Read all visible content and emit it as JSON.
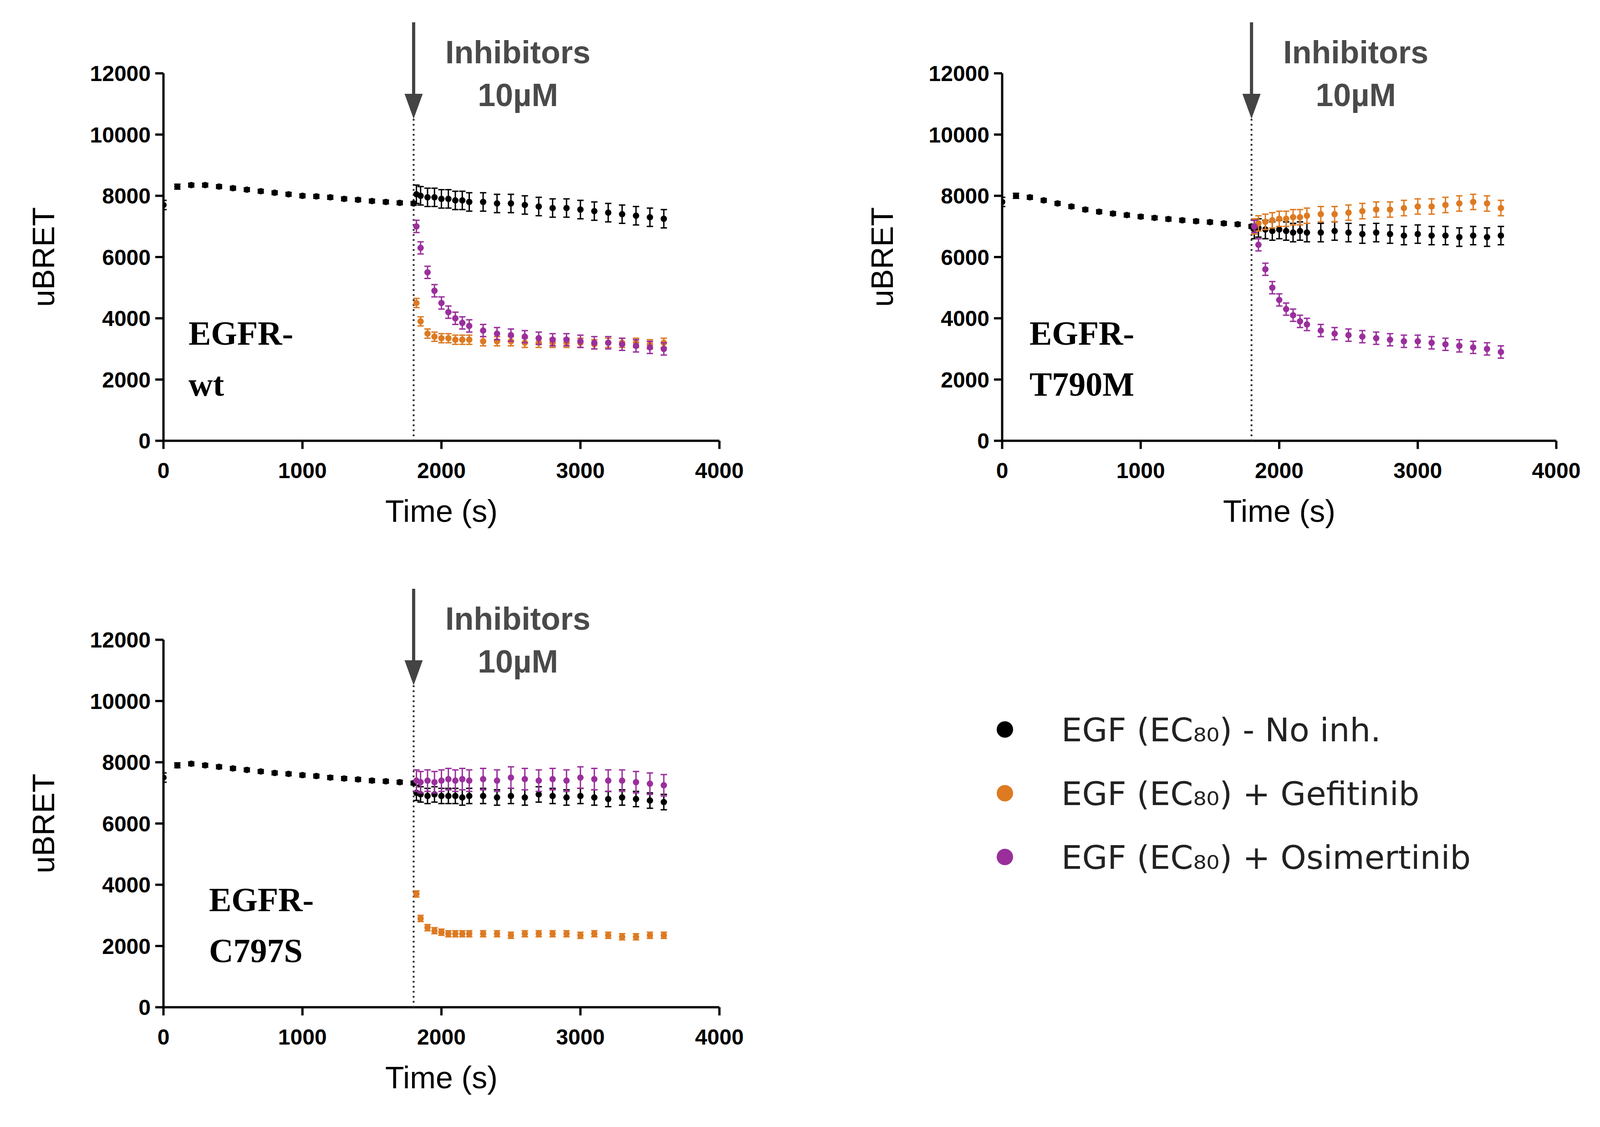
{
  "chart_data": [
    {
      "type": "scatter",
      "panel_label": [
        "EGFR-",
        "wt"
      ],
      "xlabel": "Time (s)",
      "ylabel": "uBRET",
      "annotation": {
        "text": [
          "Inhibitors",
          "10µM"
        ],
        "x": 1800
      },
      "xlim": [
        0,
        4000
      ],
      "xticks": [
        0,
        1000,
        2000,
        3000,
        4000
      ],
      "ylim": [
        0,
        12000
      ],
      "yticks": [
        0,
        2000,
        4000,
        6000,
        8000,
        10000,
        12000
      ],
      "x": [
        0,
        100,
        200,
        300,
        400,
        500,
        600,
        700,
        800,
        900,
        1000,
        1100,
        1200,
        1300,
        1400,
        1500,
        1600,
        1700,
        1800,
        1820,
        1850,
        1900,
        1950,
        2000,
        2050,
        2100,
        2150,
        2200,
        2300,
        2400,
        2500,
        2600,
        2700,
        2800,
        2900,
        3000,
        3100,
        3200,
        3300,
        3400,
        3500,
        3600
      ],
      "series": [
        {
          "name": "EGF (EC₈₀) - No inh.",
          "color": "#000000",
          "marker": "circle",
          "values": [
            7700,
            8300,
            8350,
            8350,
            8300,
            8250,
            8200,
            8150,
            8100,
            8050,
            8000,
            7980,
            7950,
            7900,
            7870,
            7830,
            7800,
            7770,
            7750,
            8050,
            8000,
            7950,
            7950,
            7900,
            7900,
            7850,
            7850,
            7800,
            7800,
            7750,
            7750,
            7700,
            7650,
            7600,
            7600,
            7550,
            7500,
            7450,
            7400,
            7350,
            7300,
            7250
          ],
          "errors": [
            150,
            80,
            60,
            60,
            60,
            60,
            60,
            60,
            60,
            60,
            60,
            60,
            60,
            60,
            60,
            60,
            60,
            60,
            60,
            300,
            300,
            300,
            300,
            300,
            300,
            300,
            300,
            300,
            300,
            300,
            300,
            300,
            300,
            300,
            300,
            300,
            300,
            300,
            300,
            300,
            300,
            300
          ]
        },
        {
          "name": "EGF (EC₈₀) + Gefitinib",
          "color": "#dd7a22",
          "marker": "circle",
          "values": [
            null,
            null,
            null,
            null,
            null,
            null,
            null,
            null,
            null,
            null,
            null,
            null,
            null,
            null,
            null,
            null,
            null,
            null,
            null,
            4500,
            3900,
            3500,
            3400,
            3350,
            3350,
            3300,
            3300,
            3300,
            3250,
            3250,
            3250,
            3200,
            3200,
            3200,
            3200,
            3200,
            3150,
            3200,
            3200,
            3200,
            3150,
            3200
          ],
          "errors": [
            null,
            null,
            null,
            null,
            null,
            null,
            null,
            null,
            null,
            null,
            null,
            null,
            null,
            null,
            null,
            null,
            null,
            null,
            null,
            150,
            150,
            150,
            150,
            150,
            150,
            150,
            150,
            150,
            150,
            150,
            150,
            150,
            150,
            150,
            150,
            150,
            150,
            150,
            150,
            150,
            150,
            150
          ]
        },
        {
          "name": "EGF (EC₈₀) + Osimertinib",
          "color": "#9a2f9c",
          "marker": "circle",
          "values": [
            null,
            null,
            null,
            null,
            null,
            null,
            null,
            null,
            null,
            null,
            null,
            null,
            null,
            null,
            null,
            null,
            null,
            null,
            null,
            7000,
            6300,
            5500,
            4900,
            4500,
            4200,
            4000,
            3850,
            3750,
            3600,
            3500,
            3450,
            3400,
            3350,
            3300,
            3300,
            3250,
            3200,
            3200,
            3150,
            3100,
            3050,
            3000
          ],
          "errors": [
            null,
            null,
            null,
            null,
            null,
            null,
            null,
            null,
            null,
            null,
            null,
            null,
            null,
            null,
            null,
            null,
            null,
            null,
            null,
            200,
            200,
            200,
            200,
            200,
            200,
            200,
            200,
            200,
            200,
            200,
            200,
            200,
            200,
            200,
            200,
            200,
            200,
            200,
            200,
            200,
            200,
            200
          ]
        }
      ]
    },
    {
      "type": "scatter",
      "panel_label": [
        "EGFR-",
        "T790M"
      ],
      "xlabel": "Time (s)",
      "ylabel": "uBRET",
      "annotation": {
        "text": [
          "Inhibitors",
          "10µM"
        ],
        "x": 1800
      },
      "xlim": [
        0,
        4000
      ],
      "xticks": [
        0,
        1000,
        2000,
        3000,
        4000
      ],
      "ylim": [
        0,
        12000
      ],
      "yticks": [
        0,
        2000,
        4000,
        6000,
        8000,
        10000,
        12000
      ],
      "x": [
        0,
        100,
        200,
        300,
        400,
        500,
        600,
        700,
        800,
        900,
        1000,
        1100,
        1200,
        1300,
        1400,
        1500,
        1600,
        1700,
        1800,
        1820,
        1850,
        1900,
        1950,
        2000,
        2050,
        2100,
        2150,
        2200,
        2300,
        2400,
        2500,
        2600,
        2700,
        2800,
        2900,
        3000,
        3100,
        3200,
        3300,
        3400,
        3500,
        3600
      ],
      "series": [
        {
          "name": "EGF (EC₈₀) - No inh.",
          "color": "#000000",
          "marker": "circle",
          "values": [
            7800,
            8000,
            7950,
            7850,
            7750,
            7650,
            7550,
            7480,
            7420,
            7370,
            7320,
            7280,
            7240,
            7200,
            7170,
            7140,
            7100,
            7070,
            7000,
            6900,
            6950,
            6900,
            6850,
            6900,
            6850,
            6800,
            6850,
            6800,
            6800,
            6850,
            6800,
            6750,
            6800,
            6750,
            6700,
            6750,
            6700,
            6700,
            6650,
            6700,
            6650,
            6700
          ],
          "errors": [
            150,
            80,
            60,
            60,
            60,
            60,
            60,
            60,
            60,
            60,
            60,
            60,
            60,
            60,
            60,
            60,
            60,
            60,
            60,
            300,
            300,
            300,
            300,
            300,
            300,
            300,
            300,
            300,
            300,
            300,
            300,
            300,
            300,
            300,
            300,
            300,
            300,
            300,
            300,
            300,
            300,
            300
          ]
        },
        {
          "name": "EGF (EC₈₀) + Gefitinib",
          "color": "#dd7a22",
          "marker": "circle",
          "values": [
            null,
            null,
            null,
            null,
            null,
            null,
            null,
            null,
            null,
            null,
            null,
            null,
            null,
            null,
            null,
            null,
            null,
            null,
            null,
            7000,
            7100,
            7150,
            7200,
            7250,
            7250,
            7300,
            7300,
            7350,
            7400,
            7400,
            7450,
            7500,
            7550,
            7550,
            7600,
            7650,
            7650,
            7700,
            7750,
            7800,
            7750,
            7600
          ],
          "errors": [
            null,
            null,
            null,
            null,
            null,
            null,
            null,
            null,
            null,
            null,
            null,
            null,
            null,
            null,
            null,
            null,
            null,
            null,
            null,
            250,
            250,
            250,
            250,
            250,
            250,
            250,
            250,
            250,
            250,
            250,
            250,
            250,
            250,
            250,
            250,
            250,
            250,
            250,
            250,
            250,
            250,
            250
          ]
        },
        {
          "name": "EGF (EC₈₀) + Osimertinib",
          "color": "#9a2f9c",
          "marker": "circle",
          "values": [
            null,
            null,
            null,
            null,
            null,
            null,
            null,
            null,
            null,
            null,
            null,
            null,
            null,
            null,
            null,
            null,
            null,
            null,
            null,
            7000,
            6400,
            5600,
            5000,
            4600,
            4300,
            4100,
            3900,
            3800,
            3600,
            3500,
            3450,
            3400,
            3350,
            3300,
            3250,
            3250,
            3200,
            3150,
            3100,
            3050,
            3000,
            2900
          ],
          "errors": [
            null,
            null,
            null,
            null,
            null,
            null,
            null,
            null,
            null,
            null,
            null,
            null,
            null,
            null,
            null,
            null,
            null,
            null,
            null,
            200,
            200,
            200,
            200,
            200,
            200,
            200,
            200,
            200,
            200,
            200,
            200,
            200,
            200,
            200,
            200,
            200,
            200,
            200,
            200,
            200,
            200,
            200
          ]
        }
      ]
    },
    {
      "type": "scatter",
      "panel_label": [
        "EGFR-",
        "C797S"
      ],
      "xlabel": "Time (s)",
      "ylabel": "uBRET",
      "annotation": {
        "text": [
          "Inhibitors",
          "10µM"
        ],
        "x": 1800
      },
      "xlim": [
        0,
        4000
      ],
      "xticks": [
        0,
        1000,
        2000,
        3000,
        4000
      ],
      "ylim": [
        0,
        12000
      ],
      "yticks": [
        0,
        2000,
        4000,
        6000,
        8000,
        10000,
        12000
      ],
      "x": [
        0,
        100,
        200,
        300,
        400,
        500,
        600,
        700,
        800,
        900,
        1000,
        1100,
        1200,
        1300,
        1400,
        1500,
        1600,
        1700,
        1800,
        1820,
        1850,
        1900,
        1950,
        2000,
        2050,
        2100,
        2150,
        2200,
        2300,
        2400,
        2500,
        2600,
        2700,
        2800,
        2900,
        3000,
        3100,
        3200,
        3300,
        3400,
        3500,
        3600
      ],
      "series": [
        {
          "name": "EGF (EC₈₀) - No inh.",
          "color": "#000000",
          "marker": "circle",
          "values": [
            7500,
            7900,
            7950,
            7900,
            7850,
            7800,
            7750,
            7700,
            7650,
            7620,
            7580,
            7550,
            7500,
            7470,
            7440,
            7400,
            7380,
            7350,
            7320,
            7000,
            6950,
            6900,
            6950,
            6900,
            6900,
            6900,
            6850,
            6900,
            6900,
            6850,
            6900,
            6850,
            6950,
            6900,
            6850,
            6900,
            6850,
            6800,
            6850,
            6800,
            6750,
            6700
          ],
          "errors": [
            150,
            80,
            60,
            60,
            60,
            60,
            60,
            60,
            60,
            60,
            60,
            60,
            60,
            60,
            60,
            60,
            60,
            60,
            60,
            250,
            250,
            250,
            250,
            250,
            250,
            250,
            250,
            250,
            250,
            250,
            250,
            250,
            250,
            250,
            250,
            250,
            250,
            250,
            250,
            250,
            250,
            250
          ]
        },
        {
          "name": "EGF (EC₈₀) + Gefitinib",
          "color": "#dd7a22",
          "marker": "circle",
          "values": [
            null,
            null,
            null,
            null,
            null,
            null,
            null,
            null,
            null,
            null,
            null,
            null,
            null,
            null,
            null,
            null,
            null,
            null,
            null,
            3700,
            2900,
            2600,
            2500,
            2450,
            2400,
            2400,
            2400,
            2400,
            2400,
            2400,
            2350,
            2400,
            2400,
            2400,
            2400,
            2350,
            2400,
            2350,
            2300,
            2300,
            2350,
            2350
          ],
          "errors": [
            null,
            null,
            null,
            null,
            null,
            null,
            null,
            null,
            null,
            null,
            null,
            null,
            null,
            null,
            null,
            null,
            null,
            null,
            null,
            100,
            100,
            100,
            100,
            100,
            100,
            100,
            100,
            100,
            100,
            100,
            100,
            100,
            100,
            100,
            100,
            100,
            100,
            100,
            100,
            100,
            100,
            100
          ]
        },
        {
          "name": "EGF (EC₈₀) + Osimertinib",
          "color": "#9a2f9c",
          "marker": "circle",
          "values": [
            null,
            null,
            null,
            null,
            null,
            null,
            null,
            null,
            null,
            null,
            null,
            null,
            null,
            null,
            null,
            null,
            null,
            null,
            null,
            7400,
            7350,
            7400,
            7350,
            7400,
            7450,
            7400,
            7450,
            7400,
            7450,
            7400,
            7500,
            7450,
            7400,
            7450,
            7400,
            7500,
            7450,
            7400,
            7400,
            7350,
            7300,
            7250
          ],
          "errors": [
            null,
            null,
            null,
            null,
            null,
            null,
            null,
            null,
            null,
            null,
            null,
            null,
            null,
            null,
            null,
            null,
            null,
            null,
            null,
            350,
            350,
            350,
            350,
            350,
            350,
            350,
            350,
            350,
            350,
            350,
            350,
            350,
            350,
            350,
            350,
            350,
            350,
            350,
            350,
            350,
            350,
            350
          ]
        }
      ]
    }
  ]
}
